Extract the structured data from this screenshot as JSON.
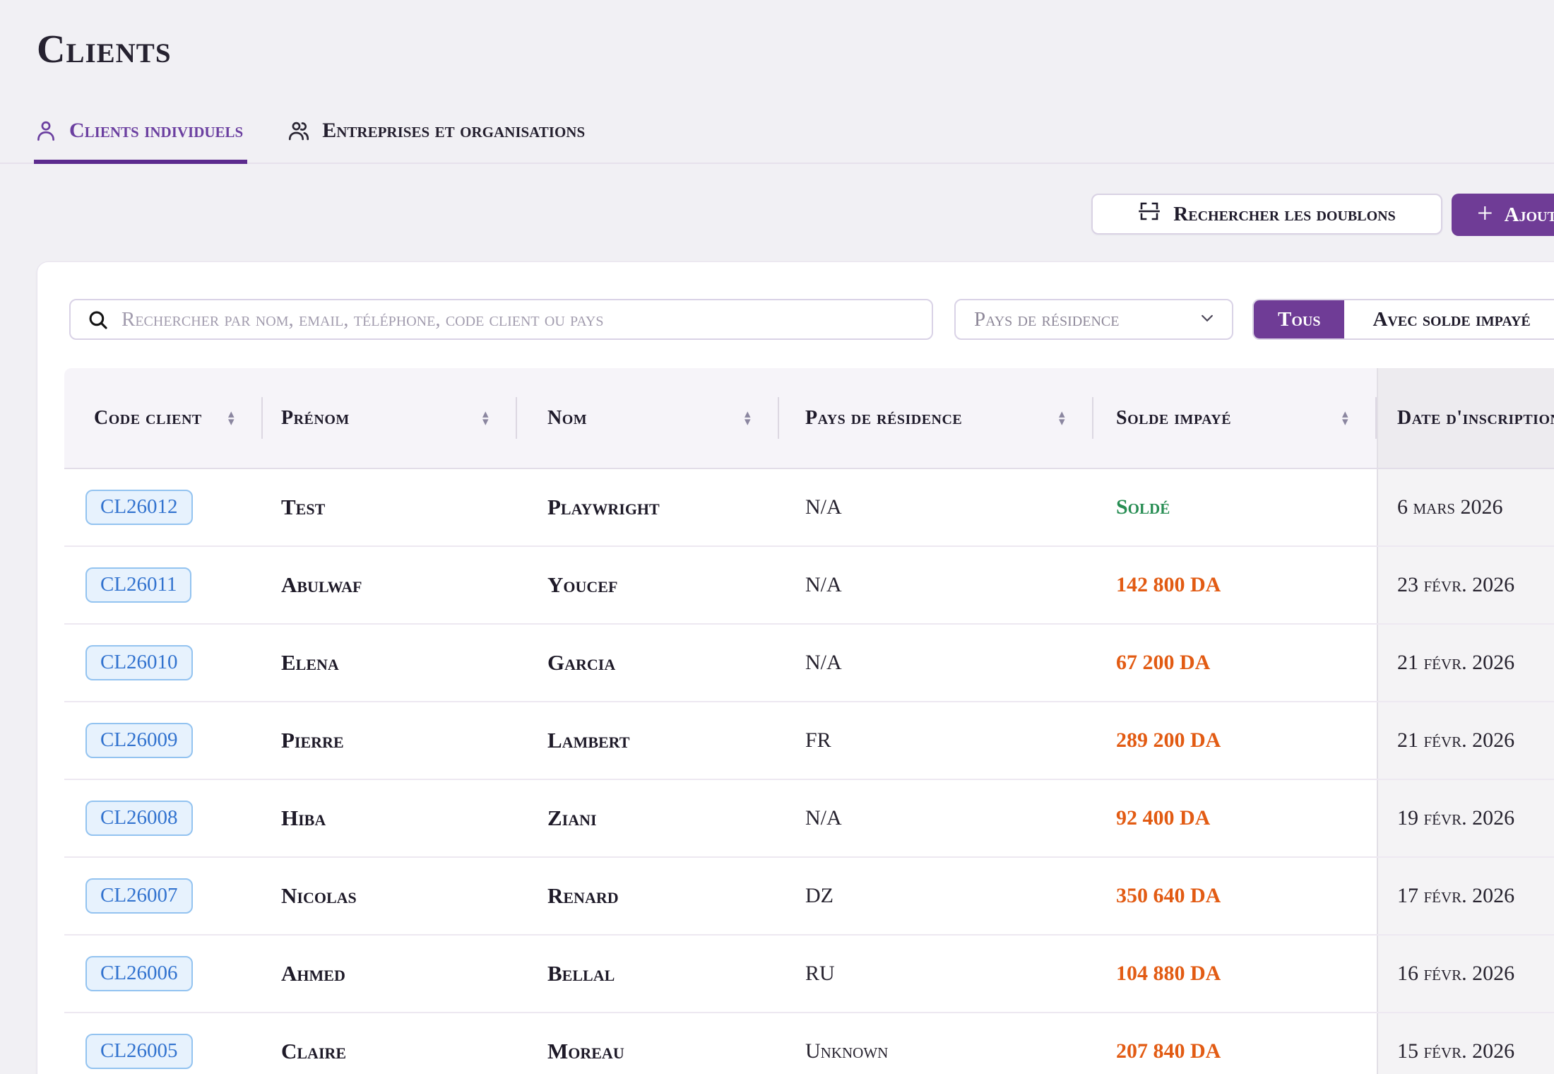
{
  "page_title": "Clients",
  "tabs": {
    "individual": "Clients individuels",
    "companies": "Entreprises et organisations"
  },
  "toolbar": {
    "find_duplicates": "Rechercher les doublons",
    "add": "Ajouter"
  },
  "filters": {
    "search_placeholder": "Rechercher par nom, email, téléphone, code client ou pays",
    "country_placeholder": "Pays de résidence",
    "segments": {
      "all": "Tous",
      "with_balance": "Avec solde impayé"
    }
  },
  "table": {
    "columns": [
      {
        "label": "Code client",
        "sortable": true
      },
      {
        "label": "Prénom",
        "sortable": true
      },
      {
        "label": "Nom",
        "sortable": true
      },
      {
        "label": "Pays de résidence",
        "sortable": true
      },
      {
        "label": "Solde impayé",
        "sortable": true
      },
      {
        "label": "Date d'inscription",
        "sortable": false
      }
    ],
    "rows": [
      {
        "code": "CL26012",
        "first_name": "Test",
        "last_name": "Playwright",
        "country": "N/A",
        "balance": "Soldé",
        "balance_status": "paid",
        "date": "6 mars 2026"
      },
      {
        "code": "CL26011",
        "first_name": "Abulwaf",
        "last_name": "Youcef",
        "country": "N/A",
        "balance": "142 800 DA",
        "balance_status": "due",
        "date": "23 févr. 2026"
      },
      {
        "code": "CL26010",
        "first_name": "Elena",
        "last_name": "Garcia",
        "country": "N/A",
        "balance": "67 200 DA",
        "balance_status": "due",
        "date": "21 févr. 2026"
      },
      {
        "code": "CL26009",
        "first_name": "Pierre",
        "last_name": "Lambert",
        "country": "FR",
        "balance": "289 200 DA",
        "balance_status": "due",
        "date": "21 févr. 2026"
      },
      {
        "code": "CL26008",
        "first_name": "Hiba",
        "last_name": "Ziani",
        "country": "N/A",
        "balance": "92 400 DA",
        "balance_status": "due",
        "date": "19 févr. 2026"
      },
      {
        "code": "CL26007",
        "first_name": "Nicolas",
        "last_name": "Renard",
        "country": "DZ",
        "balance": "350 640 DA",
        "balance_status": "due",
        "date": "17 févr. 2026"
      },
      {
        "code": "CL26006",
        "first_name": "Ahmed",
        "last_name": "Bellal",
        "country": "RU",
        "balance": "104 880 DA",
        "balance_status": "due",
        "date": "16 févr. 2026"
      },
      {
        "code": "CL26005",
        "first_name": "Claire",
        "last_name": "Moreau",
        "country": "Unknown",
        "balance": "207 840 DA",
        "balance_status": "due",
        "date": "15 févr. 2026"
      }
    ]
  },
  "icons": {
    "plus_icon": "+",
    "sort_asc_icon": "▴",
    "sort_desc_icon": "▾",
    "chevron_down_icon": "∨"
  },
  "colors": {
    "accent_purple": "#6f3c96",
    "underline_purple": "#5c2b8e",
    "tab_purple": "#6b3fa0",
    "due_orange": "#e25b13",
    "paid_green": "#278d53",
    "badge_blue": "#3273cf",
    "badge_bg": "#e7f2fd",
    "badge_border": "#93c3f0"
  }
}
